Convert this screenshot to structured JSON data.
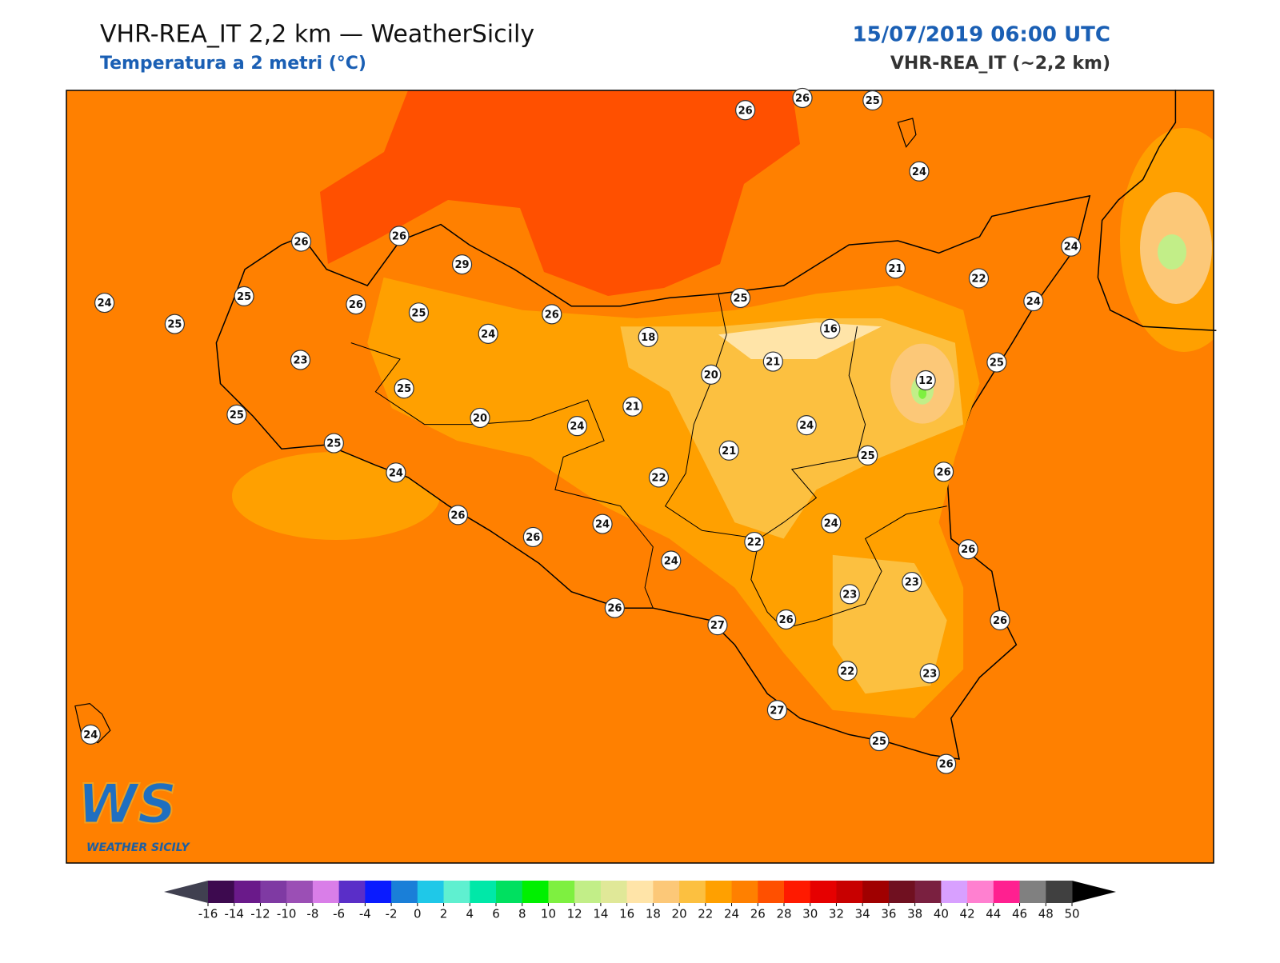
{
  "header": {
    "title": "VHR-REA_IT 2,2 km — WeatherSicily",
    "subtitle": "Temperatura a 2 metri (°C)",
    "datetime": "15/07/2019 06:00 UTC",
    "model": "VHR-REA_IT (~2,2 km)"
  },
  "stations": [
    26,
    26,
    25,
    24,
    26,
    26,
    29,
    24,
    21,
    22,
    24,
    25,
    26,
    25,
    26,
    25,
    24,
    25,
    24,
    18,
    16,
    23,
    21,
    25,
    20,
    12,
    25,
    21,
    25,
    20,
    24,
    24,
    25,
    21,
    25,
    22,
    24,
    26,
    26,
    24,
    24,
    26,
    22,
    26,
    24,
    23,
    23,
    26,
    26,
    27,
    26,
    22,
    23,
    27,
    25,
    26,
    24
  ],
  "colorbar": {
    "ticks": [
      -16,
      -14,
      -12,
      -10,
      -8,
      -6,
      -4,
      -2,
      0,
      2,
      4,
      6,
      8,
      10,
      12,
      14,
      16,
      18,
      20,
      22,
      24,
      26,
      28,
      30,
      32,
      34,
      36,
      38,
      40,
      42,
      44,
      46,
      48,
      50
    ],
    "colors": [
      "#3d0a4f",
      "#6a1a8a",
      "#7f3aa3",
      "#9b4fb5",
      "#d97ee8",
      "#5a2ec8",
      "#0a1bff",
      "#1a7fd8",
      "#1fc8e8",
      "#5ff0d0",
      "#00e8a8",
      "#00e060",
      "#00f000",
      "#7ef040",
      "#c2ee88",
      "#e0e898",
      "#ffe4a8",
      "#fcc878",
      "#fcc040",
      "#ffa000",
      "#ff8000",
      "#ff5000",
      "#ff1a00",
      "#e60000",
      "#c80000",
      "#a00000",
      "#701020",
      "#7a2040",
      "#d8a0ff",
      "#ff80d0",
      "#ff2090",
      "#808080",
      "#404040"
    ],
    "under_color": "#404050",
    "over_color": "#000000"
  },
  "logo": {
    "text": "WS",
    "caption": "WEATHER SICILY"
  }
}
